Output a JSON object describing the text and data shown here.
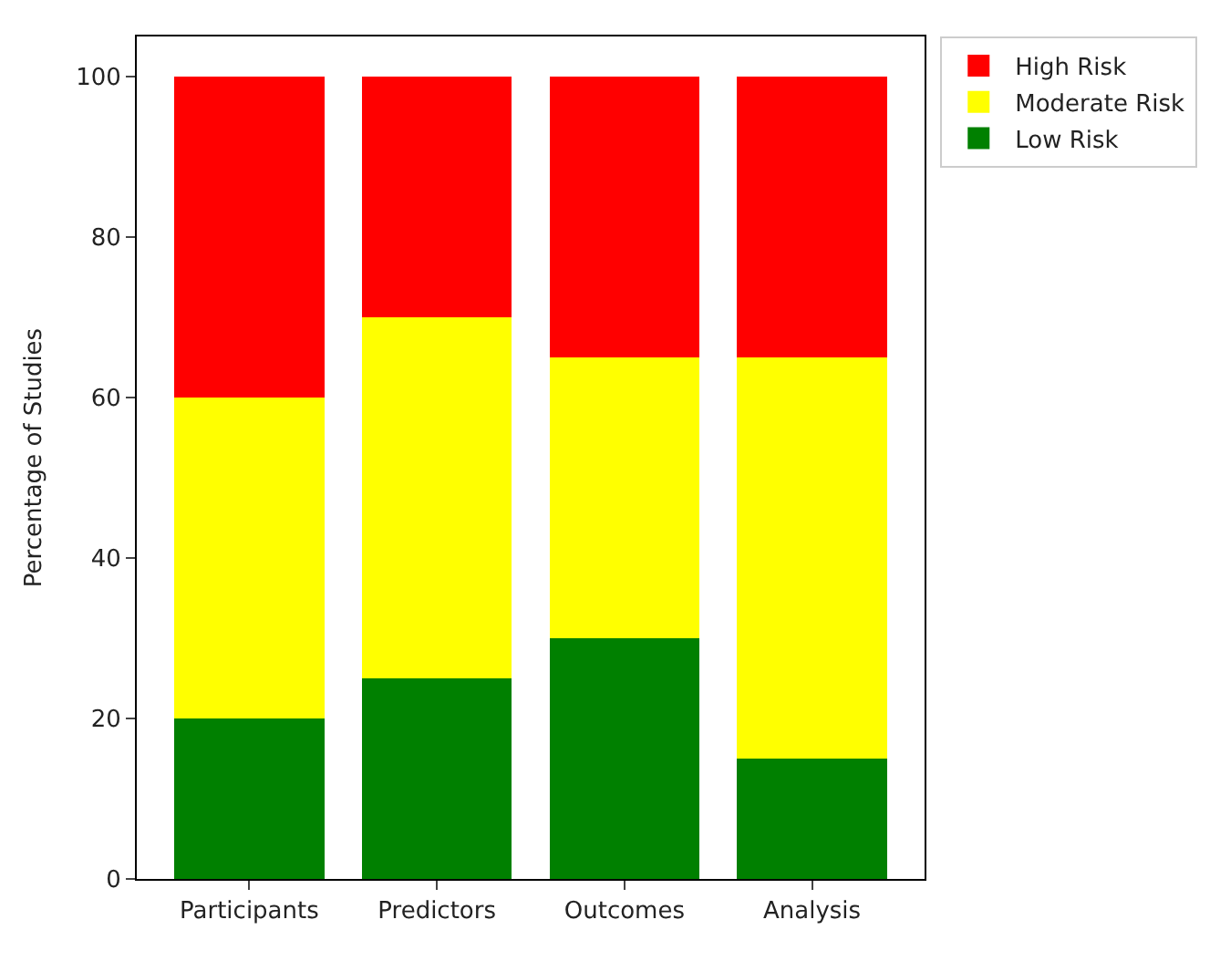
{
  "chart_data": {
    "type": "bar",
    "stacked": true,
    "ylabel": "Percentage of Studies",
    "categories": [
      "Participants",
      "Predictors",
      "Outcomes",
      "Analysis"
    ],
    "series": [
      {
        "name": "Low Risk",
        "color": "#008000",
        "values": [
          20,
          25,
          30,
          15
        ]
      },
      {
        "name": "Moderate Risk",
        "color": "#ffff00",
        "values": [
          40,
          45,
          35,
          50
        ]
      },
      {
        "name": "High Risk",
        "color": "#ff0000",
        "values": [
          40,
          30,
          35,
          35
        ]
      }
    ],
    "ylim": [
      0,
      105
    ],
    "yticks": [
      0,
      20,
      40,
      60,
      80,
      100
    ],
    "grid": false,
    "legend": "top right"
  }
}
